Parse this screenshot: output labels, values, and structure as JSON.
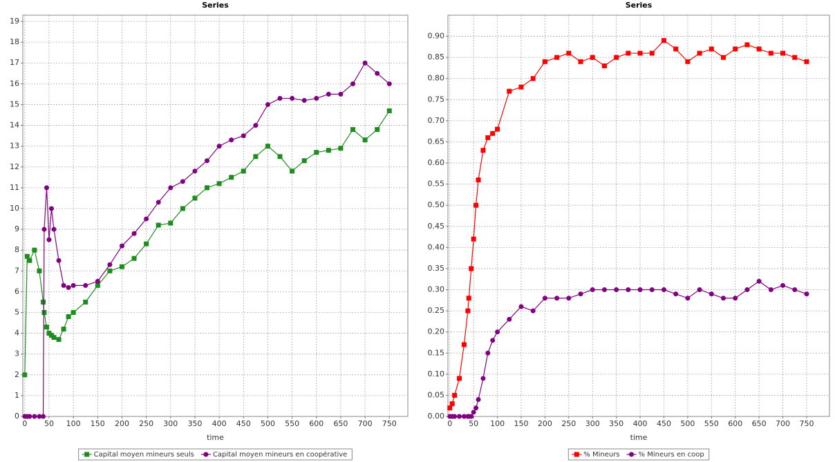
{
  "chart_data": [
    {
      "type": "line",
      "title": "Series",
      "x_label": "time",
      "legend": "bottom",
      "grid": true,
      "x": [
        0,
        5,
        10,
        20,
        30,
        38,
        40,
        45,
        50,
        55,
        60,
        70,
        80,
        90,
        100,
        125,
        150,
        175,
        200,
        225,
        250,
        275,
        300,
        325,
        350,
        375,
        400,
        425,
        450,
        475,
        500,
        525,
        550,
        575,
        600,
        625,
        650,
        675,
        700,
        725,
        750
      ],
      "xlim": [
        -4,
        788
      ],
      "xticks": [
        0,
        50,
        100,
        150,
        200,
        250,
        300,
        350,
        400,
        450,
        500,
        550,
        600,
        650,
        700,
        750
      ],
      "ylim": [
        0,
        19.3
      ],
      "yticks": [
        0,
        1,
        2,
        3,
        4,
        5,
        6,
        7,
        8,
        9,
        10,
        11,
        12,
        13,
        14,
        15,
        16,
        17,
        18,
        19
      ],
      "series": [
        {
          "name": "Capital moyen mineurs seuls",
          "color": "#1e8c1e",
          "marker": "square",
          "values": [
            2,
            7.7,
            7.5,
            8,
            7,
            5.5,
            5,
            4.3,
            4,
            3.9,
            3.8,
            3.7,
            4.2,
            4.8,
            5,
            5.5,
            6.3,
            7,
            7.2,
            7.6,
            8.3,
            9.2,
            9.3,
            10,
            10.5,
            11,
            11.2,
            11.5,
            11.8,
            12.5,
            13,
            12.5,
            11.8,
            12.3,
            12.7,
            12.8,
            12.9,
            13.8,
            13.3,
            13.8,
            14.7
          ]
        },
        {
          "name": "Capital moyen mineurs en coopérative",
          "color": "#800080",
          "marker": "circle",
          "values": [
            0,
            0,
            0,
            0,
            0,
            0,
            9,
            11,
            8.5,
            10,
            9,
            7.5,
            6.3,
            6.2,
            6.3,
            6.3,
            6.5,
            7.3,
            8.2,
            8.8,
            9.5,
            10.3,
            11,
            11.3,
            11.8,
            12.3,
            13,
            13.3,
            13.5,
            14,
            15,
            15.3,
            15.3,
            15.2,
            15.3,
            15.5,
            15.5,
            16,
            17,
            16.5,
            16
          ]
        }
      ]
    },
    {
      "type": "line",
      "title": "Series",
      "x_label": "time",
      "legend": "bottom",
      "grid": true,
      "x": [
        0,
        5,
        10,
        20,
        30,
        38,
        40,
        45,
        50,
        55,
        60,
        70,
        80,
        90,
        100,
        125,
        150,
        175,
        200,
        225,
        250,
        275,
        300,
        325,
        350,
        375,
        400,
        425,
        450,
        475,
        500,
        525,
        550,
        575,
        600,
        625,
        650,
        675,
        700,
        725,
        750
      ],
      "xlim": [
        -4,
        798
      ],
      "xticks": [
        0,
        50,
        100,
        150,
        200,
        250,
        300,
        350,
        400,
        450,
        500,
        550,
        600,
        650,
        700,
        750
      ],
      "ylim": [
        0,
        0.95
      ],
      "yticks": [
        {
          "value": 0,
          "label": "0.00"
        },
        {
          "value": 0.05,
          "label": "0.05"
        },
        {
          "value": 0.1,
          "label": "0.10"
        },
        {
          "value": 0.15,
          "label": "0.15"
        },
        {
          "value": 0.2,
          "label": "0.20"
        },
        {
          "value": 0.25,
          "label": "0.25"
        },
        {
          "value": 0.3,
          "label": "0.30"
        },
        {
          "value": 0.35,
          "label": "0.35"
        },
        {
          "value": 0.4,
          "label": "0.40"
        },
        {
          "value": 0.45,
          "label": "0.45"
        },
        {
          "value": 0.5,
          "label": "0.50"
        },
        {
          "value": 0.55,
          "label": "0.55"
        },
        {
          "value": 0.6,
          "label": "0.60"
        },
        {
          "value": 0.65,
          "label": "0.65"
        },
        {
          "value": 0.7,
          "label": "0.70"
        },
        {
          "value": 0.75,
          "label": "0.75"
        },
        {
          "value": 0.8,
          "label": "0.80"
        },
        {
          "value": 0.85,
          "label": "0.85"
        },
        {
          "value": 0.9,
          "label": "0.90"
        }
      ],
      "series": [
        {
          "name": "% Mineurs",
          "color": "#ff0000",
          "marker": "square",
          "values": [
            0.02,
            0.03,
            0.05,
            0.09,
            0.17,
            0.25,
            0.28,
            0.35,
            0.42,
            0.5,
            0.56,
            0.63,
            0.66,
            0.67,
            0.68,
            0.77,
            0.78,
            0.8,
            0.84,
            0.85,
            0.86,
            0.84,
            0.85,
            0.83,
            0.85,
            0.86,
            0.86,
            0.86,
            0.89,
            0.87,
            0.84,
            0.86,
            0.87,
            0.85,
            0.87,
            0.88,
            0.87,
            0.86,
            0.86,
            0.85,
            0.84
          ]
        },
        {
          "name": "% Mineurs en coop",
          "color": "#800080",
          "marker": "circle",
          "values": [
            0,
            0,
            0,
            0,
            0,
            0,
            0,
            0,
            0.01,
            0.02,
            0.04,
            0.09,
            0.15,
            0.18,
            0.2,
            0.23,
            0.26,
            0.25,
            0.28,
            0.28,
            0.28,
            0.29,
            0.3,
            0.3,
            0.3,
            0.3,
            0.3,
            0.3,
            0.3,
            0.29,
            0.28,
            0.3,
            0.29,
            0.28,
            0.28,
            0.3,
            0.32,
            0.3,
            0.31,
            0.3,
            0.29
          ]
        }
      ]
    }
  ]
}
